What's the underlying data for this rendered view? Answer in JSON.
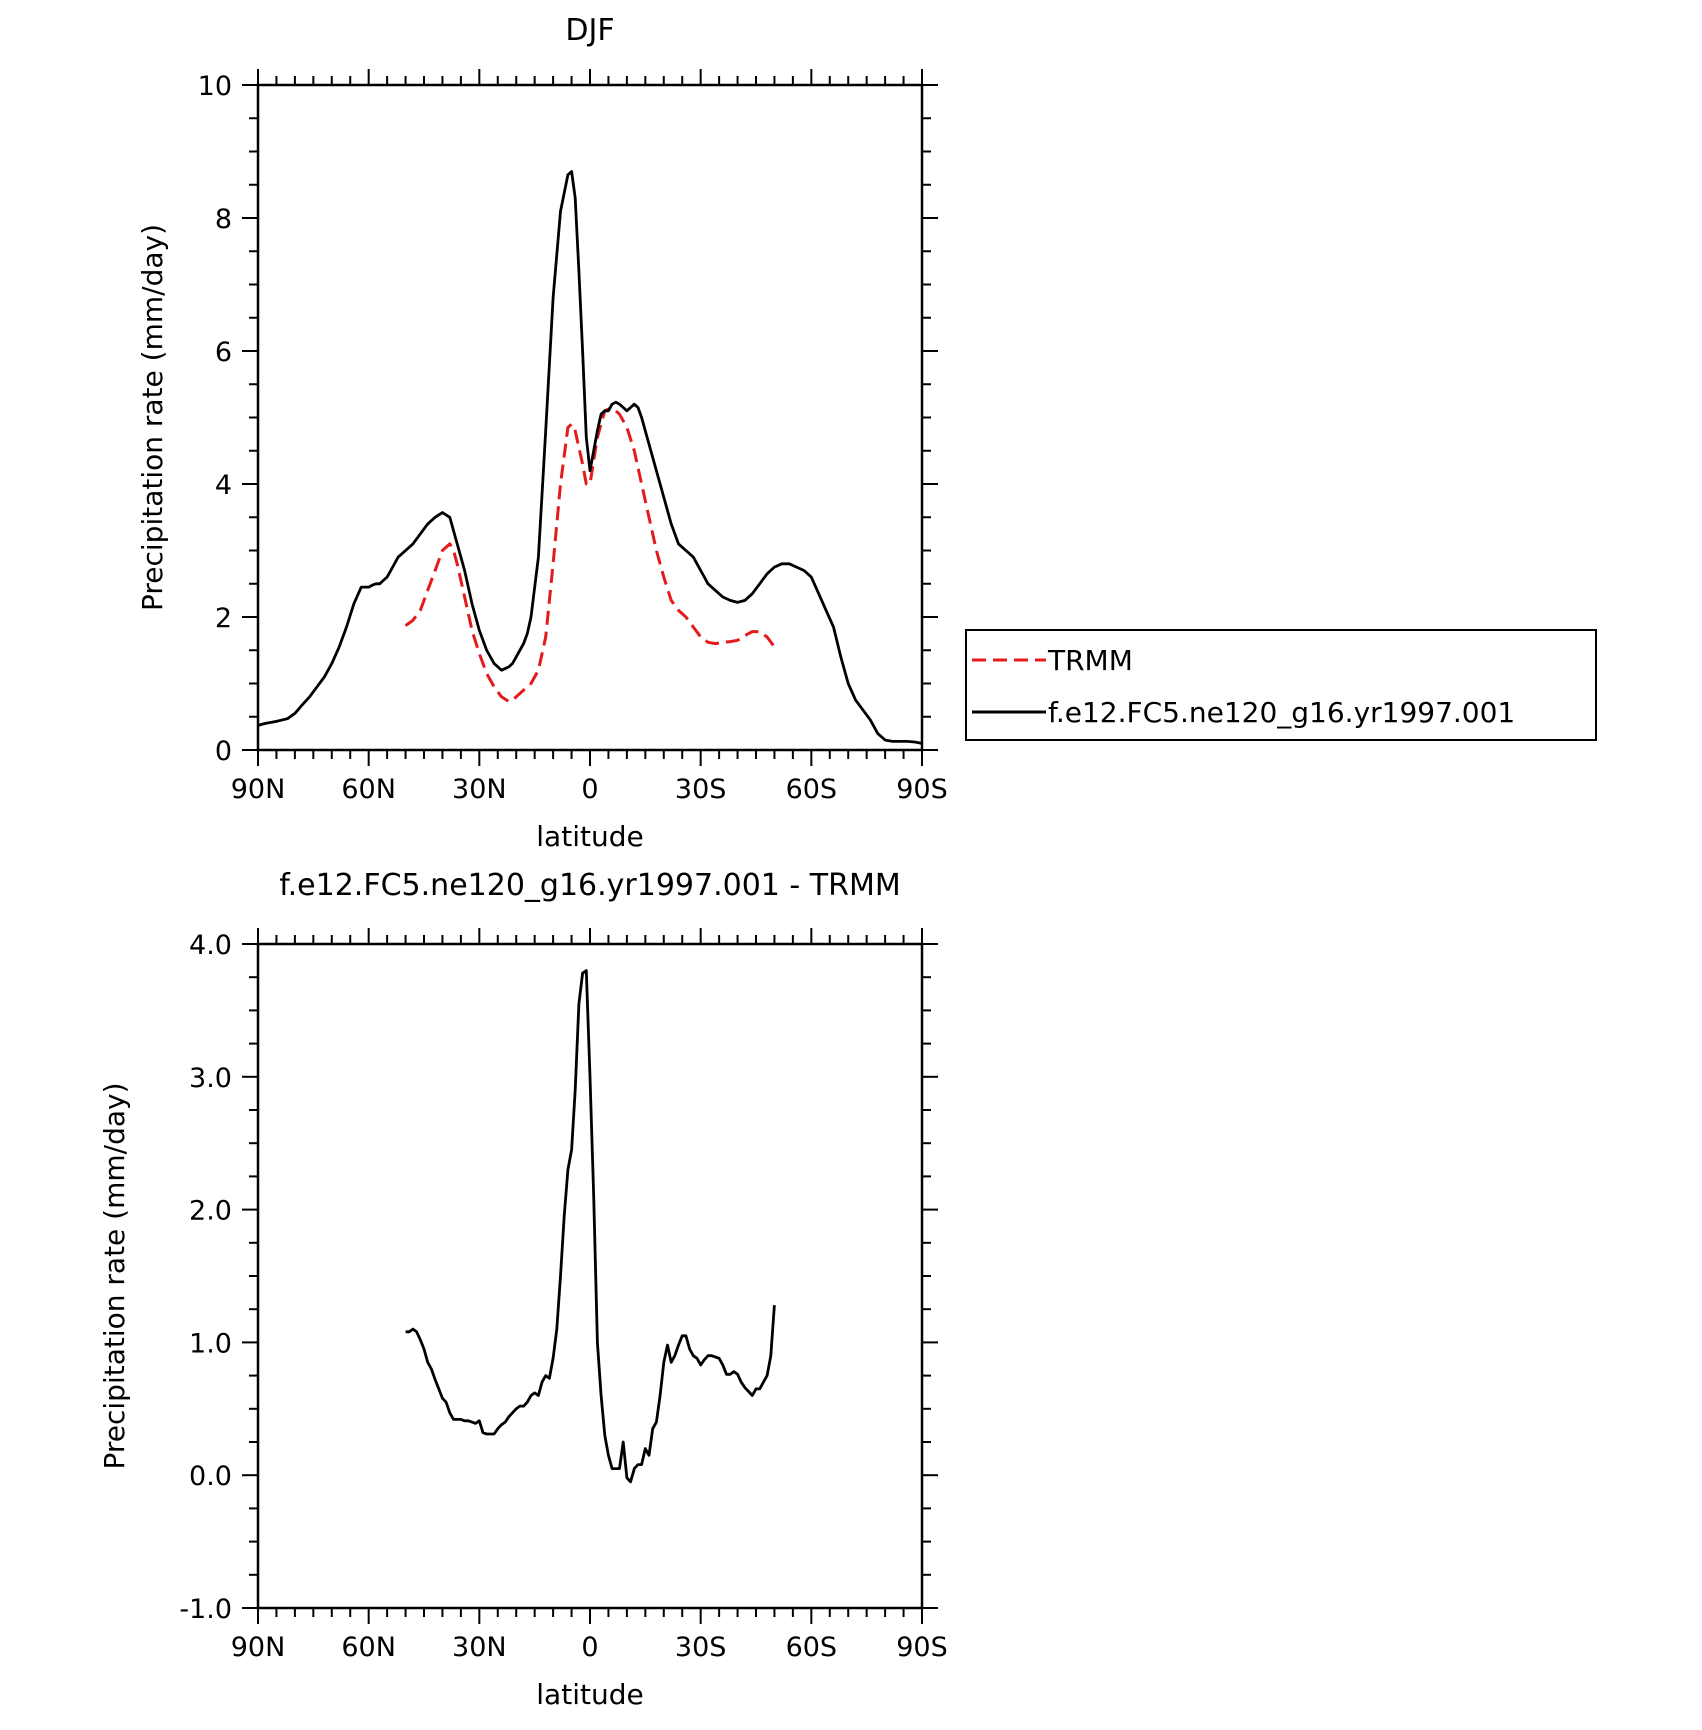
{
  "chart_data": [
    {
      "type": "line",
      "title": "DJF",
      "xlabel": "latitude",
      "ylabel": "Precipitation rate (mm/day)",
      "xlim": [
        90,
        -90
      ],
      "ylim": [
        0,
        10
      ],
      "x_ticks": [
        90,
        60,
        30,
        0,
        -30,
        -60,
        -90
      ],
      "x_tick_labels": [
        "90N",
        "60N",
        "30N",
        "0",
        "30S",
        "60S",
        "90S"
      ],
      "y_ticks": [
        0,
        2,
        4,
        6,
        8,
        10
      ],
      "y_tick_labels": [
        "0",
        "2",
        "4",
        "6",
        "8",
        "10"
      ],
      "grid": false,
      "legend_position": "right",
      "series": [
        {
          "name": "TRMM",
          "color": "#e41a1c",
          "style": "dashed",
          "x": [
            50,
            48,
            46,
            44,
            42,
            40,
            38,
            37,
            36,
            34,
            32,
            30,
            28,
            26,
            24,
            22,
            21,
            20,
            18,
            16,
            14,
            12,
            10,
            8,
            6,
            5,
            4,
            2,
            1,
            0,
            -2,
            -4,
            -6,
            -8,
            -10,
            -12,
            -14,
            -16,
            -18,
            -20,
            -22,
            -24,
            -26,
            -28,
            -30,
            -32,
            -34,
            -36,
            -38,
            -40,
            -42,
            -44,
            -46,
            -48,
            -50
          ],
          "y": [
            1.87,
            1.95,
            2.1,
            2.4,
            2.7,
            3.0,
            3.1,
            3.0,
            2.8,
            2.3,
            1.8,
            1.45,
            1.15,
            0.95,
            0.8,
            0.73,
            0.75,
            0.8,
            0.9,
            1.0,
            1.2,
            1.7,
            2.8,
            4.0,
            4.85,
            4.9,
            4.8,
            4.3,
            4.0,
            4.0,
            4.7,
            5.1,
            5.15,
            5.05,
            4.85,
            4.5,
            4.0,
            3.5,
            3.0,
            2.6,
            2.25,
            2.1,
            2.0,
            1.85,
            1.7,
            1.62,
            1.6,
            1.62,
            1.63,
            1.65,
            1.72,
            1.78,
            1.78,
            1.7,
            1.55
          ]
        },
        {
          "name": "f.e12.FC5.ne120_g16.yr1997.001",
          "color": "#000000",
          "style": "solid",
          "x": [
            90,
            88,
            85,
            82,
            80,
            78,
            76,
            74,
            72,
            70,
            68,
            66,
            64,
            62,
            60,
            59,
            58,
            57,
            56,
            55,
            54,
            52,
            50,
            48,
            46,
            44,
            42,
            40,
            38,
            37,
            36,
            34,
            32,
            30,
            28,
            26,
            24,
            22,
            21,
            20,
            18,
            17,
            16,
            14,
            12,
            10,
            8,
            6,
            5,
            4,
            3,
            2,
            1,
            0,
            -1,
            -2,
            -3,
            -4,
            -5,
            -6,
            -7,
            -8,
            -9,
            -10,
            -11,
            -12,
            -13,
            -14,
            -16,
            -18,
            -20,
            -22,
            -24,
            -26,
            -28,
            -30,
            -32,
            -34,
            -36,
            -38,
            -40,
            -42,
            -44,
            -46,
            -48,
            -50,
            -52,
            -54,
            -56,
            -58,
            -60,
            -62,
            -64,
            -66,
            -68,
            -70,
            -72,
            -74,
            -76,
            -78,
            -80,
            -82,
            -84,
            -86,
            -88,
            -90
          ],
          "y": [
            0.37,
            0.4,
            0.43,
            0.47,
            0.55,
            0.68,
            0.8,
            0.95,
            1.1,
            1.3,
            1.55,
            1.85,
            2.2,
            2.45,
            2.45,
            2.48,
            2.5,
            2.5,
            2.55,
            2.6,
            2.7,
            2.9,
            3.0,
            3.1,
            3.25,
            3.4,
            3.5,
            3.57,
            3.5,
            3.3,
            3.1,
            2.7,
            2.2,
            1.8,
            1.5,
            1.3,
            1.2,
            1.25,
            1.3,
            1.4,
            1.6,
            1.75,
            2.0,
            2.9,
            4.8,
            6.8,
            8.1,
            8.65,
            8.7,
            8.3,
            7.2,
            6.0,
            4.7,
            4.2,
            4.5,
            4.8,
            5.05,
            5.1,
            5.1,
            5.2,
            5.23,
            5.2,
            5.15,
            5.1,
            5.15,
            5.2,
            5.15,
            5.0,
            4.6,
            4.2,
            3.8,
            3.4,
            3.1,
            3.0,
            2.9,
            2.7,
            2.5,
            2.4,
            2.3,
            2.25,
            2.22,
            2.25,
            2.35,
            2.5,
            2.65,
            2.75,
            2.8,
            2.8,
            2.75,
            2.7,
            2.6,
            2.35,
            2.1,
            1.85,
            1.4,
            1.0,
            0.75,
            0.6,
            0.45,
            0.25,
            0.15,
            0.13,
            0.13,
            0.13,
            0.12,
            0.1
          ]
        }
      ]
    },
    {
      "type": "line",
      "title": "f.e12.FC5.ne120_g16.yr1997.001 - TRMM",
      "xlabel": "latitude",
      "ylabel": "Precipitation rate (mm/day)",
      "xlim": [
        90,
        -90
      ],
      "ylim": [
        -1.0,
        4.0
      ],
      "x_ticks": [
        90,
        60,
        30,
        0,
        -30,
        -60,
        -90
      ],
      "x_tick_labels": [
        "90N",
        "60N",
        "30N",
        "0",
        "30S",
        "60S",
        "90S"
      ],
      "y_ticks": [
        -1.0,
        0.0,
        1.0,
        2.0,
        3.0,
        4.0
      ],
      "y_tick_labels": [
        "-1.0",
        "0.0",
        "1.0",
        "2.0",
        "3.0",
        "4.0"
      ],
      "grid": false,
      "series": [
        {
          "color": "#000000",
          "style": "solid",
          "x": [
            50,
            49,
            48,
            47,
            46,
            45,
            44,
            43,
            42,
            41,
            40,
            39,
            38,
            37,
            36,
            35,
            34,
            33,
            32,
            31,
            30,
            29,
            28,
            27,
            26,
            25,
            24,
            23,
            22,
            21,
            20,
            19,
            18,
            17,
            16,
            15,
            14,
            13,
            12,
            11,
            10,
            9,
            8,
            7,
            6,
            5,
            4,
            3,
            2,
            1,
            0,
            -1,
            -2,
            -3,
            -4,
            -5,
            -6,
            -7,
            -8,
            -9,
            -10,
            -11,
            -12,
            -13,
            -14,
            -15,
            -16,
            -17,
            -18,
            -19,
            -20,
            -21,
            -22,
            -23,
            -24,
            -25,
            -26,
            -27,
            -28,
            -29,
            -30,
            -31,
            -32,
            -33,
            -34,
            -35,
            -36,
            -37,
            -38,
            -39,
            -40,
            -41,
            -42,
            -43,
            -44,
            -45,
            -46,
            -47,
            -48,
            -49,
            -50
          ],
          "y": [
            1.08,
            1.08,
            1.1,
            1.08,
            1.02,
            0.95,
            0.85,
            0.8,
            0.72,
            0.65,
            0.58,
            0.55,
            0.47,
            0.42,
            0.42,
            0.42,
            0.41,
            0.41,
            0.4,
            0.39,
            0.41,
            0.32,
            0.31,
            0.31,
            0.31,
            0.35,
            0.38,
            0.4,
            0.44,
            0.47,
            0.5,
            0.52,
            0.52,
            0.55,
            0.6,
            0.62,
            0.6,
            0.7,
            0.75,
            0.73,
            0.88,
            1.1,
            1.5,
            1.95,
            2.3,
            2.45,
            2.9,
            3.55,
            3.78,
            3.8,
            3.0,
            2.1,
            1.0,
            0.6,
            0.3,
            0.15,
            0.05,
            0.05,
            0.05,
            0.25,
            -0.02,
            -0.05,
            0.05,
            0.08,
            0.08,
            0.2,
            0.15,
            0.35,
            0.4,
            0.6,
            0.85,
            0.98,
            0.85,
            0.9,
            0.98,
            1.05,
            1.05,
            0.95,
            0.9,
            0.88,
            0.83,
            0.87,
            0.9,
            0.9,
            0.89,
            0.88,
            0.83,
            0.76,
            0.76,
            0.78,
            0.76,
            0.7,
            0.66,
            0.63,
            0.6,
            0.65,
            0.65,
            0.7,
            0.75,
            0.9,
            1.28
          ]
        }
      ]
    }
  ]
}
